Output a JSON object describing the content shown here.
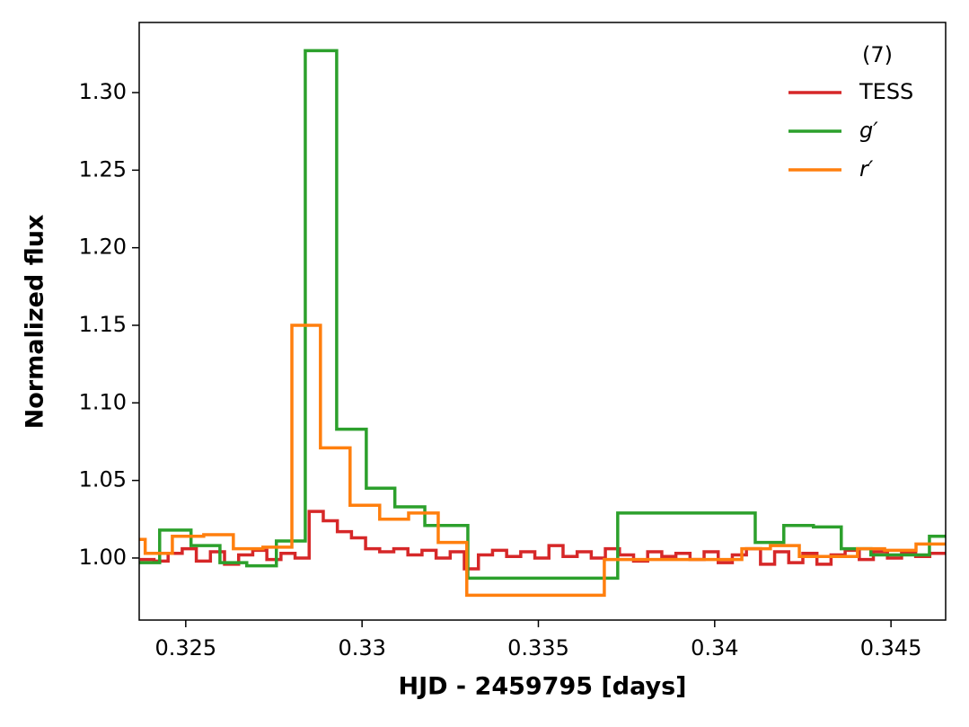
{
  "chart_data": {
    "type": "step",
    "xlabel": "HJD - 2459795 [days]",
    "ylabel": "Normalized flux",
    "legend_title": "(7)",
    "legend_position": "upper right",
    "xlim": [
      0.32368,
      0.34655
    ],
    "ylim": [
      0.96,
      1.3452
    ],
    "xticks": [
      0.325,
      0.33,
      0.335,
      0.34,
      0.345
    ],
    "yticks": [
      {
        "value": 1.0,
        "label": "1.00"
      },
      {
        "value": 1.05,
        "label": "1.05"
      },
      {
        "value": 1.1,
        "label": "1.10"
      },
      {
        "value": 1.15,
        "label": "1.15"
      },
      {
        "value": 1.2,
        "label": "1.20"
      },
      {
        "value": 1.25,
        "label": "1.25"
      },
      {
        "value": 1.3,
        "label": "1.30"
      }
    ],
    "series": [
      {
        "name": "TESS",
        "color": "#d62728",
        "x": [
          0.3237,
          0.3241,
          0.3245,
          0.3249,
          0.3253,
          0.3257,
          0.3261,
          0.3265,
          0.3269,
          0.3273,
          0.3277,
          0.3281,
          0.3285,
          0.3289,
          0.3293,
          0.3297,
          0.3301,
          0.3305,
          0.3309,
          0.3313,
          0.3317,
          0.3321,
          0.3325,
          0.3329,
          0.3333,
          0.3337,
          0.3341,
          0.3345,
          0.3349,
          0.3353,
          0.3357,
          0.3361,
          0.3365,
          0.3369,
          0.3373,
          0.3377,
          0.3381,
          0.3385,
          0.3389,
          0.3393,
          0.3397,
          0.3401,
          0.3405,
          0.3409,
          0.3413,
          0.3417,
          0.3421,
          0.3425,
          0.3429,
          0.3433,
          0.3437,
          0.3441,
          0.3445,
          0.3449,
          0.3453,
          0.3457,
          0.3461,
          0.3465
        ],
        "values": [
          0.999,
          0.998,
          1.003,
          1.006,
          0.998,
          1.004,
          0.996,
          1.002,
          1.005,
          0.999,
          1.003,
          1.0,
          1.03,
          1.024,
          1.017,
          1.013,
          1.006,
          1.004,
          1.006,
          1.002,
          1.005,
          1.0,
          1.004,
          0.993,
          1.002,
          1.005,
          1.001,
          1.004,
          1.0,
          1.008,
          1.001,
          1.004,
          1.0,
          1.006,
          1.002,
          0.998,
          1.004,
          1.001,
          1.003,
          0.999,
          1.004,
          0.997,
          1.002,
          1.006,
          0.996,
          1.004,
          0.997,
          1.003,
          0.996,
          1.002,
          1.005,
          0.999,
          1.004,
          1.0,
          1.003,
          1.001,
          1.003,
          1.002
        ]
      },
      {
        "name": "g′",
        "color": "#2ca02c",
        "x": [
          0.32368,
          0.32426,
          0.32515,
          0.32597,
          0.32673,
          0.32757,
          0.32839,
          0.32928,
          0.33012,
          0.33093,
          0.33178,
          0.333,
          0.33725,
          0.34115,
          0.34196,
          0.3428,
          0.34359,
          0.34443,
          0.34609,
          0.34655
        ],
        "values": [
          0.997,
          1.018,
          1.008,
          0.997,
          0.995,
          1.011,
          1.327,
          1.083,
          1.045,
          1.033,
          1.021,
          0.987,
          1.029,
          1.01,
          1.021,
          1.02,
          1.006,
          1.002,
          1.014,
          1.014
        ]
      },
      {
        "name": "r′",
        "color": "#ff7f0e",
        "x": [
          0.32368,
          0.32385,
          0.32462,
          0.32551,
          0.32635,
          0.32719,
          0.32801,
          0.32882,
          0.32966,
          0.3305,
          0.33132,
          0.33216,
          0.33297,
          0.33687,
          0.34077,
          0.34158,
          0.3424,
          0.34405,
          0.34482,
          0.34571,
          0.34655
        ],
        "values": [
          1.012,
          1.003,
          1.014,
          1.015,
          1.006,
          1.007,
          1.15,
          1.071,
          1.034,
          1.025,
          1.029,
          1.01,
          0.976,
          0.999,
          1.006,
          1.008,
          1.001,
          1.006,
          1.005,
          1.009,
          1.009
        ]
      }
    ]
  }
}
